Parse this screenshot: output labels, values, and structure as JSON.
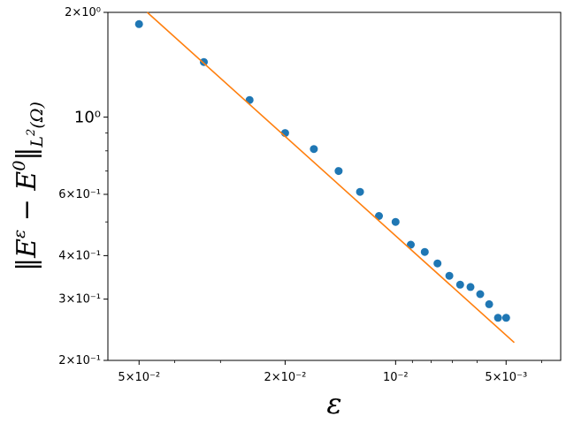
{
  "chart_data": {
    "type": "scatter",
    "title": "",
    "xlabel": "ε",
    "ylabel": "‖E^ε − E^0‖_{L^2(Ω)}",
    "x_scale": "log",
    "y_scale": "log",
    "x_inverted": true,
    "xlim": [
      0.0608,
      0.00355
    ],
    "ylim": [
      0.2,
      2.0
    ],
    "grid": false,
    "series": [
      {
        "kind": "points",
        "color": "#1f77b4",
        "x": [
          0.05,
          0.0333,
          0.025,
          0.02,
          0.0167,
          0.0143,
          0.0125,
          0.0111,
          0.01,
          0.00909,
          0.00833,
          0.00769,
          0.00714,
          0.00667,
          0.00625,
          0.00588,
          0.00556,
          0.00526,
          0.005
        ],
        "y": [
          1.85,
          1.44,
          1.12,
          0.9,
          0.81,
          0.7,
          0.61,
          0.52,
          0.5,
          0.43,
          0.41,
          0.38,
          0.35,
          0.33,
          0.325,
          0.31,
          0.29,
          0.265,
          0.265
        ]
      },
      {
        "kind": "line",
        "color": "#ff7f0e",
        "x": [
          0.0475,
          0.00475
        ],
        "y": [
          2.0,
          0.225
        ]
      }
    ],
    "x_ticks": [
      {
        "value": 0.05,
        "label": "5×10⁻²"
      },
      {
        "value": 0.02,
        "label": "2×10⁻²"
      },
      {
        "value": 0.01,
        "label": "10⁻²"
      },
      {
        "value": 0.005,
        "label": "5×10⁻³"
      }
    ],
    "x_minor_ticks": [
      0.04,
      0.03,
      0.009,
      0.008,
      0.007,
      0.006,
      0.004
    ],
    "y_ticks": [
      {
        "value": 2.0,
        "label": "2×10⁰"
      },
      {
        "value": 1.0,
        "label": "10⁰"
      },
      {
        "value": 0.6,
        "label": "6×10⁻¹"
      },
      {
        "value": 0.4,
        "label": "4×10⁻¹"
      },
      {
        "value": 0.3,
        "label": "3×10⁻¹"
      },
      {
        "value": 0.2,
        "label": "2×10⁻¹"
      }
    ],
    "y_minor_ticks": [
      0.8,
      0.7,
      0.5,
      0.9
    ]
  }
}
